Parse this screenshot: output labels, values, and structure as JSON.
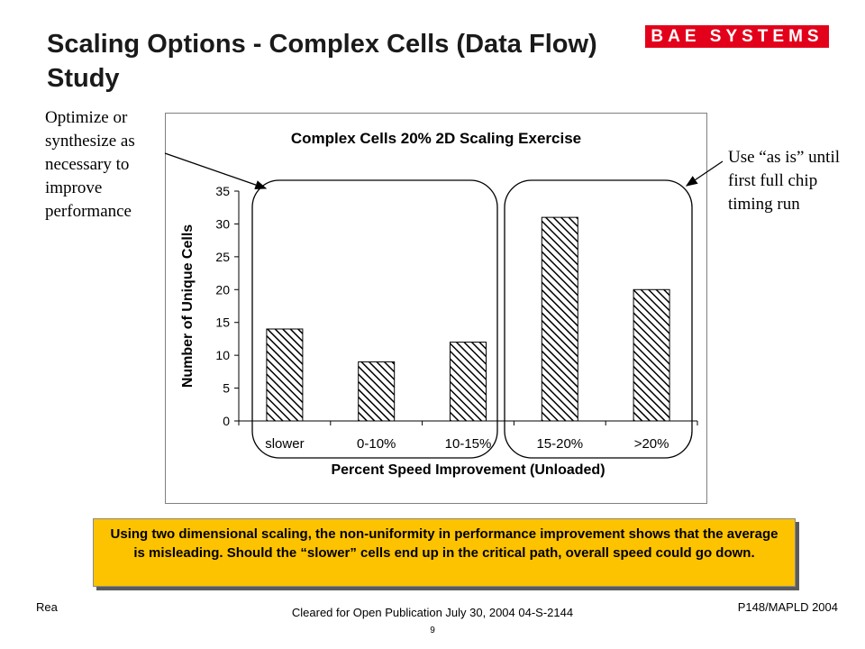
{
  "slide": {
    "title": "Scaling Options - Complex Cells (Data Flow) Study",
    "logo_text": "BAE SYSTEMS",
    "note_left": "Optimize or synthesize as necessary to improve performance",
    "note_right": "Use “as is” until first full chip timing run",
    "callout": "Using two dimensional scaling, the non-uniformity in performance improvement shows that the average is misleading.  Should the “slower” cells end up in the critical path, overall speed could go down.",
    "footer_left": "Rea",
    "footer_center": "Cleared for Open Publication July 30, 2004 04-S-2144",
    "footer_right": "P148/MAPLD 2004",
    "page_number": "9"
  },
  "colors": {
    "callout_bg": "#fdc300",
    "logo_bg": "#e3001b",
    "bar_hatch": "#000000"
  },
  "chart_data": {
    "type": "bar",
    "title": "Complex Cells 20% 2D Scaling Exercise",
    "xlabel": "Percent Speed Improvement (Unloaded)",
    "ylabel": "Number of Unique Cells",
    "categories": [
      "slower",
      "0-10%",
      "10-15%",
      "15-20%",
      ">20%"
    ],
    "values": [
      14,
      9,
      12,
      31,
      20
    ],
    "ylim": [
      0,
      35
    ],
    "yticks": [
      0,
      5,
      10,
      15,
      20,
      25,
      30,
      35
    ],
    "grid": false,
    "legend": "none",
    "fill": "diagonal-hatch"
  }
}
